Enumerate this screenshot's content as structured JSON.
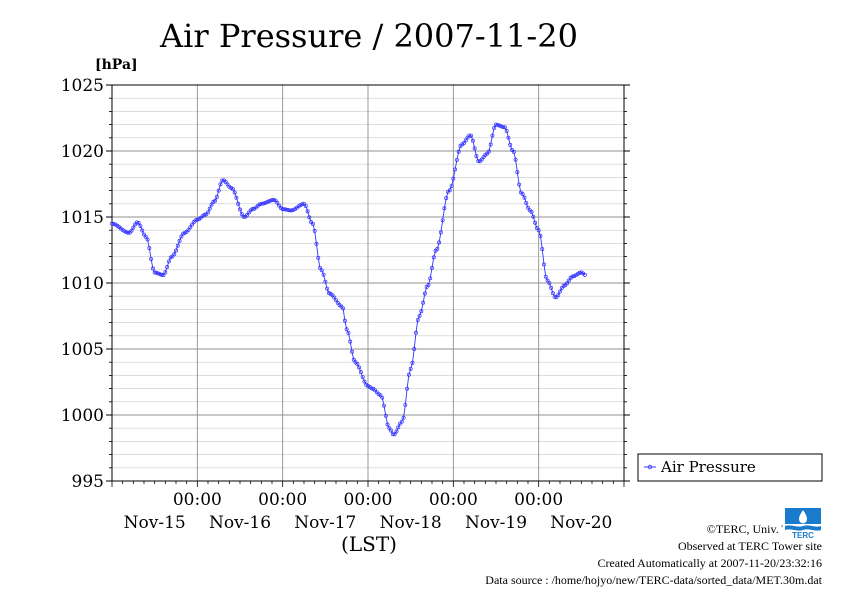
{
  "chart_data": {
    "type": "line",
    "title": "Air Pressure / 2007-11-20",
    "ylabel": "[hPa]",
    "xlabel": "(LST)",
    "ylim": [
      995,
      1025
    ],
    "yticks": [
      995,
      1000,
      1005,
      1010,
      1015,
      1020,
      1025
    ],
    "xlim_days": [
      0,
      6
    ],
    "xtick_time_label": "00:00",
    "xtick_date_labels": [
      "Nov-15",
      "Nov-16",
      "Nov-17",
      "Nov-18",
      "Nov-19",
      "Nov-20"
    ],
    "grid": true,
    "legend_position": "right",
    "series": [
      {
        "name": "Air Pressure",
        "color": "#3333ff",
        "points": [
          [
            0.0,
            1014.5
          ],
          [
            0.2,
            1013.8
          ],
          [
            0.3,
            1014.6
          ],
          [
            0.4,
            1013.5
          ],
          [
            0.5,
            1010.8
          ],
          [
            0.6,
            1010.6
          ],
          [
            0.7,
            1012.0
          ],
          [
            0.85,
            1013.8
          ],
          [
            1.0,
            1014.8
          ],
          [
            1.1,
            1015.2
          ],
          [
            1.2,
            1016.2
          ],
          [
            1.3,
            1017.8
          ],
          [
            1.4,
            1017.2
          ],
          [
            1.55,
            1015.0
          ],
          [
            1.65,
            1015.6
          ],
          [
            1.75,
            1016.0
          ],
          [
            1.9,
            1016.3
          ],
          [
            2.0,
            1015.6
          ],
          [
            2.1,
            1015.5
          ],
          [
            2.25,
            1016.0
          ],
          [
            2.35,
            1014.5
          ],
          [
            2.45,
            1011.0
          ],
          [
            2.55,
            1009.2
          ],
          [
            2.7,
            1008.2
          ],
          [
            2.75,
            1006.5
          ],
          [
            2.85,
            1004.0
          ],
          [
            3.0,
            1002.2
          ],
          [
            3.05,
            1002.0
          ],
          [
            3.15,
            1001.5
          ],
          [
            3.25,
            999.0
          ],
          [
            3.3,
            998.5
          ],
          [
            3.4,
            999.5
          ],
          [
            3.5,
            1003.5
          ],
          [
            3.6,
            1007.5
          ],
          [
            3.7,
            1009.8
          ],
          [
            3.8,
            1012.5
          ],
          [
            3.95,
            1017.0
          ],
          [
            4.1,
            1020.5
          ],
          [
            4.2,
            1021.2
          ],
          [
            4.3,
            1019.2
          ],
          [
            4.4,
            1019.8
          ],
          [
            4.5,
            1022.0
          ],
          [
            4.6,
            1021.8
          ],
          [
            4.7,
            1020.0
          ],
          [
            4.8,
            1016.8
          ],
          [
            4.9,
            1015.5
          ],
          [
            5.0,
            1014.0
          ],
          [
            5.1,
            1010.2
          ],
          [
            5.2,
            1008.9
          ],
          [
            5.3,
            1009.8
          ],
          [
            5.4,
            1010.5
          ],
          [
            5.5,
            1010.8
          ],
          [
            5.55,
            1010.6
          ]
        ]
      }
    ]
  },
  "footer": {
    "copyright": "©TERC, Univ. Tsukuba",
    "observed": "Observed at TERC Tower site",
    "created": "Created Automatically at 2007-11-20/23:32:16",
    "source": "Data source : /home/hojyo/new/TERC-data/sorted_data/MET.30m.dat",
    "logo_text": "TERC"
  }
}
